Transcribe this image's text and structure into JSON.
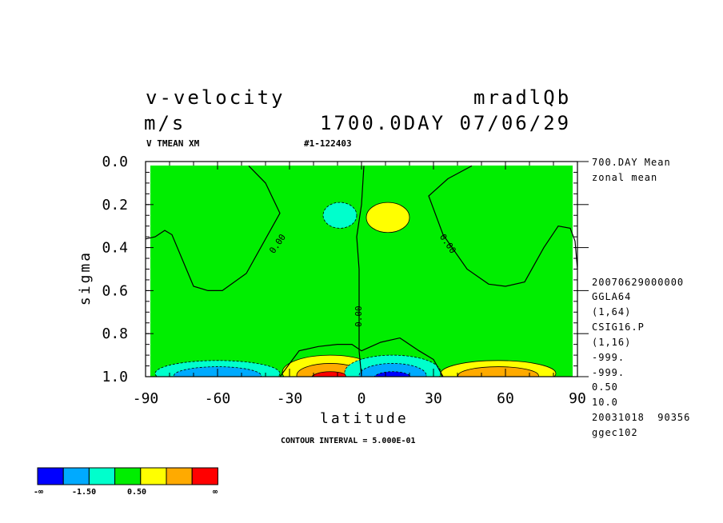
{
  "header": {
    "variable": "v-velocity",
    "units": "m/s",
    "run_name": "mradlQb",
    "time": "1700.0DAY 07/06/29",
    "sub_left": "V TMEAN XM",
    "sub_mid": "#1-122403"
  },
  "side_info": {
    "top": [
      "700.DAY Mean",
      "zonal mean"
    ],
    "bottom": [
      "20070629000000",
      "GGLA64",
      "(1,64)",
      "CSIG16.P",
      "(1,16)",
      "-999.",
      "-999.",
      "0.50",
      "10.0",
      "20031018  90356",
      "ggec102"
    ]
  },
  "contour_interval": "CONTOUR INTERVAL = 5.000E-01",
  "colorbar": {
    "colors": [
      "#0000ff",
      "#00aaff",
      "#00ffcc",
      "#00ee00",
      "#ffff00",
      "#ffaa00",
      "#ff0000"
    ],
    "labels": [
      "-∞",
      "-1.50",
      "0.50",
      "∞"
    ]
  },
  "chart_data": {
    "type": "heatmap",
    "xlabel": "latitude",
    "ylabel": "sigma",
    "xlim": [
      -90,
      90
    ],
    "ylim": [
      1.0,
      0.0
    ],
    "xticks": [
      -90,
      -60,
      -30,
      0,
      30,
      60,
      90
    ],
    "xtick_labels": [
      "-90",
      "-60",
      "-30",
      "0",
      "30",
      "60",
      "90"
    ],
    "yticks": [
      0.0,
      0.2,
      0.4,
      0.6,
      0.8,
      1.0
    ],
    "ytick_labels": [
      "0.0",
      "0.2",
      "0.4",
      "0.6",
      "0.8",
      "1.0"
    ],
    "background_color": "#00ee00",
    "zero_contour_label": "0.00",
    "zero_contours": [
      [
        [
          -90,
          0.36
        ],
        [
          -86,
          0.35
        ],
        [
          -82,
          0.32
        ],
        [
          -79,
          0.34
        ],
        [
          -73,
          0.5
        ],
        [
          -70,
          0.58
        ],
        [
          -64,
          0.6
        ],
        [
          -58,
          0.6
        ],
        [
          -48,
          0.52
        ],
        [
          -40,
          0.36
        ],
        [
          -34,
          0.24
        ],
        [
          -40,
          0.1
        ],
        [
          -47,
          0.02
        ]
      ],
      [
        [
          90,
          0.5
        ],
        [
          89,
          0.37
        ],
        [
          87,
          0.31
        ],
        [
          82,
          0.3
        ],
        [
          76,
          0.4
        ],
        [
          68,
          0.56
        ],
        [
          60,
          0.58
        ],
        [
          53,
          0.57
        ],
        [
          44,
          0.5
        ],
        [
          34,
          0.34
        ],
        [
          28,
          0.16
        ],
        [
          36,
          0.08
        ],
        [
          46,
          0.02
        ]
      ],
      [
        [
          1,
          0.02
        ],
        [
          0,
          0.2
        ],
        [
          -2,
          0.35
        ],
        [
          -1,
          0.5
        ],
        [
          -1,
          0.7
        ],
        [
          -1,
          0.88
        ],
        [
          0,
          1.0
        ]
      ],
      [
        [
          -34,
          1.0
        ],
        [
          -26,
          0.88
        ],
        [
          -18,
          0.86
        ],
        [
          -10,
          0.85
        ],
        [
          -4,
          0.85
        ],
        [
          0,
          0.88
        ],
        [
          8,
          0.84
        ],
        [
          16,
          0.82
        ],
        [
          24,
          0.88
        ],
        [
          30,
          0.92
        ],
        [
          34,
          1.0
        ]
      ]
    ],
    "anomalies": [
      {
        "lon": -9,
        "sigma": 0.25,
        "rx": 7,
        "ry": 0.06,
        "levels": [
          "#00ffcc"
        ]
      },
      {
        "lon": 11,
        "sigma": 0.26,
        "rx": 9,
        "ry": 0.07,
        "levels": [
          "#ffff00"
        ]
      },
      {
        "lon": -60,
        "sigma": 0.985,
        "rx": 26,
        "ry": 0.06,
        "levels": [
          "#00ffcc",
          "#00aaff"
        ]
      },
      {
        "lon": -13,
        "sigma": 0.98,
        "rx": 20,
        "ry": 0.08,
        "levels": [
          "#ffff00",
          "#ffaa00",
          "#ff0000"
        ]
      },
      {
        "lon": 13,
        "sigma": 0.98,
        "rx": 20,
        "ry": 0.08,
        "levels": [
          "#00ffcc",
          "#00aaff",
          "#0000ff"
        ]
      },
      {
        "lon": 57,
        "sigma": 0.985,
        "rx": 24,
        "ry": 0.06,
        "levels": [
          "#ffff00",
          "#ffaa00"
        ]
      }
    ]
  }
}
